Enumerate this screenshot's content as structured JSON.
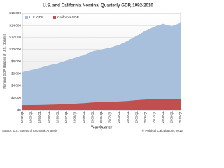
{
  "chart_data": {
    "type": "area",
    "title": "U.S. and California Nominal Quarterly GDP, 1992-2010",
    "y_label": "Nominal GDP [Billions of U.S. Dollars]",
    "x_label": "Year-Quarter",
    "source": "Source: U.S. Bureau of Economic Analysis",
    "credit": "© Political Calculations 2012",
    "categories": [
      "1992-Q1",
      "1993-Q1",
      "1994-Q1",
      "1995-Q1",
      "1996-Q1",
      "1997-Q1",
      "1998-Q1",
      "1999-Q1",
      "2000-Q1",
      "2001-Q1",
      "2002-Q1",
      "2003-Q1",
      "2004-Q1",
      "2005-Q1",
      "2006-Q1",
      "2007-Q1",
      "2008-Q1",
      "2009-Q1",
      "2010-Q1"
    ],
    "series": [
      {
        "name": "U.S. GDP",
        "color": "#a9c0dd",
        "values": [
          6260,
          6590,
          6950,
          7370,
          7700,
          8180,
          8620,
          9090,
          9700,
          10020,
          10320,
          10760,
          11450,
          12270,
          13100,
          13790,
          14290,
          13890,
          14450
        ]
      },
      {
        "name": "California GDP",
        "color": "#c0504d",
        "values": [
          800,
          810,
          830,
          870,
          910,
          980,
          1050,
          1130,
          1250,
          1320,
          1340,
          1400,
          1500,
          1620,
          1730,
          1800,
          1860,
          1790,
          1830
        ]
      }
    ],
    "ylim": [
      0,
      16000
    ],
    "yticks": [
      {
        "value": 0,
        "label": "$0"
      },
      {
        "value": 2000,
        "label": "$2,000"
      },
      {
        "value": 4000,
        "label": "$4,000"
      },
      {
        "value": 6000,
        "label": "$6,000"
      },
      {
        "value": 8000,
        "label": "$8,000"
      },
      {
        "value": 10000,
        "label": "$10,000"
      },
      {
        "value": 12000,
        "label": "$12,000"
      },
      {
        "value": 14000,
        "label": "$14,000"
      },
      {
        "value": 16000,
        "label": "$16,000"
      }
    ],
    "grid": true,
    "legend": "top-left"
  }
}
